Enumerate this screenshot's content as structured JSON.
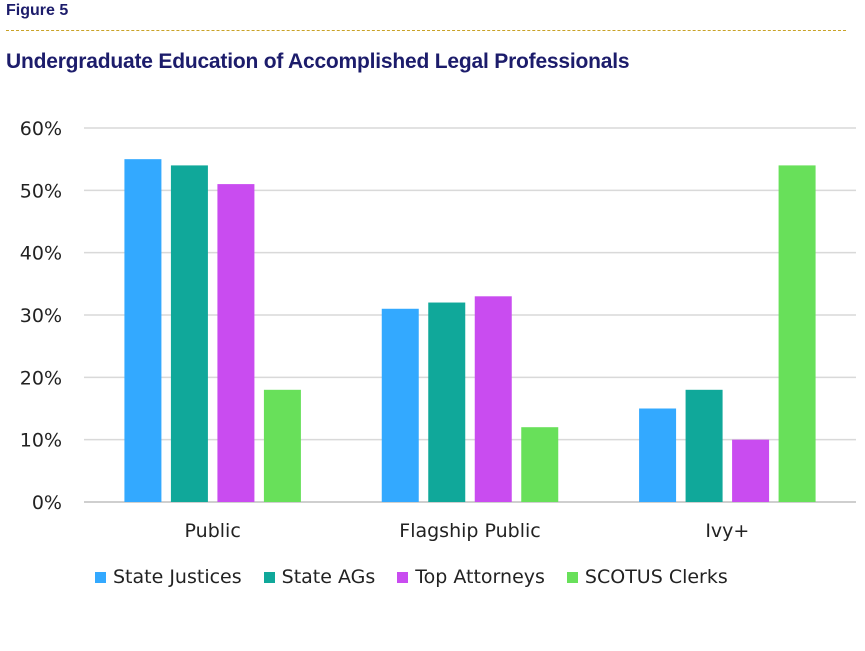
{
  "figure_label": "Figure 5",
  "chart_data": {
    "type": "bar",
    "title": "Undergraduate Education of Accomplished Legal Professionals",
    "categories": [
      "Public",
      "Flagship Public",
      "Ivy+"
    ],
    "series": [
      {
        "name": "State Justices",
        "values": [
          55,
          31,
          15
        ],
        "color": "#33a9ff"
      },
      {
        "name": "State AGs",
        "values": [
          54,
          32,
          18
        ],
        "color": "#10a89a"
      },
      {
        "name": "Top Attorneys",
        "values": [
          51,
          33,
          10
        ],
        "color": "#c94cf0"
      },
      {
        "name": "SCOTUS Clerks",
        "values": [
          18,
          12,
          54
        ],
        "color": "#68e05a"
      }
    ],
    "ylim": [
      0,
      60
    ],
    "yticks": [
      "0%",
      "10%",
      "20%",
      "30%",
      "40%",
      "50%",
      "60%"
    ],
    "grid": true,
    "legend_position": "bottom"
  }
}
